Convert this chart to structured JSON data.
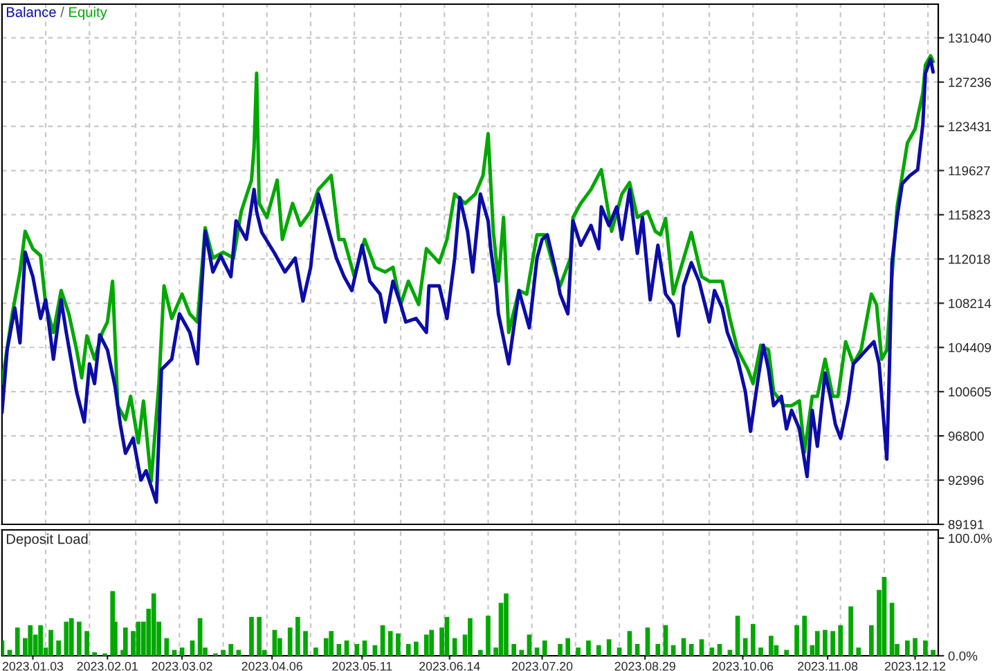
{
  "chart_data": [
    {
      "type": "line",
      "legend": "top left",
      "grid": true,
      "tick_labels": "y",
      "annotations": [
        "/"
      ],
      "xlim": [
        "2022-12-22",
        "2023-12-21"
      ],
      "ylim": [
        89191,
        133940
      ],
      "yticks": [
        89191,
        92996,
        96800,
        100605,
        104409,
        108214,
        112018,
        115823,
        119627,
        123431,
        127236,
        131040
      ],
      "xticks": [
        {
          "value": "2023-01-08",
          "label": null
        },
        {
          "value": "2023-01-25",
          "label": null
        },
        {
          "value": "2023-02-12",
          "label": null
        },
        {
          "value": "2023-03-01",
          "label": null
        },
        {
          "value": "2023-03-18",
          "label": null
        },
        {
          "value": "2023-04-04",
          "label": null
        },
        {
          "value": "2023-04-21",
          "label": null
        },
        {
          "value": "2023-05-08",
          "label": null
        },
        {
          "value": "2023-05-26",
          "label": null
        },
        {
          "value": "2023-06-12",
          "label": null
        },
        {
          "value": "2023-06-29",
          "label": null
        },
        {
          "value": "2023-07-16",
          "label": null
        },
        {
          "value": "2023-08-02",
          "label": null
        },
        {
          "value": "2023-08-19",
          "label": null
        },
        {
          "value": "2023-09-05",
          "label": null
        },
        {
          "value": "2023-09-23",
          "label": null
        },
        {
          "value": "2023-10-10",
          "label": null
        },
        {
          "value": "2023-10-27",
          "label": null
        },
        {
          "value": "2023-11-13",
          "label": null
        },
        {
          "value": "2023-11-30",
          "label": null
        },
        {
          "value": "2023-12-17",
          "label": null
        }
      ],
      "series": [
        {
          "name": "Balance",
          "color": "#0c0ca8",
          "x": [
            "2022-12-22",
            "2022-12-24",
            "2022-12-27",
            "2022-12-29",
            "2022-12-31",
            "2023-01-03",
            "2023-01-06",
            "2023-01-08",
            "2023-01-11",
            "2023-01-14",
            "2023-01-16",
            "2023-01-20",
            "2023-01-23",
            "2023-01-25",
            "2023-01-27",
            "2023-01-29",
            "2023-02-01",
            "2023-02-04",
            "2023-02-06",
            "2023-02-08",
            "2023-02-11",
            "2023-02-14",
            "2023-02-16",
            "2023-02-20",
            "2023-02-22",
            "2023-02-26",
            "2023-03-01",
            "2023-03-05",
            "2023-03-08",
            "2023-03-09",
            "2023-03-11",
            "2023-03-14",
            "2023-03-17",
            "2023-03-21",
            "2023-03-23",
            "2023-03-27",
            "2023-03-30",
            "2023-03-31",
            "2023-04-02",
            "2023-04-07",
            "2023-04-11",
            "2023-04-15",
            "2023-04-18",
            "2023-04-21",
            "2023-04-24",
            "2023-04-27",
            "2023-05-01",
            "2023-05-04",
            "2023-05-07",
            "2023-05-11",
            "2023-05-14",
            "2023-05-18",
            "2023-05-20",
            "2023-05-23",
            "2023-05-26",
            "2023-05-28",
            "2023-06-01",
            "2023-06-05",
            "2023-06-06",
            "2023-06-10",
            "2023-06-13",
            "2023-06-16",
            "2023-06-18",
            "2023-06-21",
            "2023-06-23",
            "2023-06-26",
            "2023-06-29",
            "2023-06-30",
            "2023-07-02",
            "2023-07-03",
            "2023-07-07",
            "2023-07-08",
            "2023-07-11",
            "2023-07-15",
            "2023-07-18",
            "2023-07-20",
            "2023-07-22",
            "2023-07-25",
            "2023-07-27",
            "2023-07-30",
            "2023-08-01",
            "2023-08-04",
            "2023-08-08",
            "2023-08-11",
            "2023-08-12",
            "2023-08-15",
            "2023-08-18",
            "2023-08-20",
            "2023-08-23",
            "2023-08-26",
            "2023-08-28",
            "2023-08-31",
            "2023-09-03",
            "2023-09-06",
            "2023-09-09",
            "2023-09-11",
            "2023-09-13",
            "2023-09-16",
            "2023-09-19",
            "2023-09-23",
            "2023-09-25",
            "2023-09-28",
            "2023-09-30",
            "2023-10-04",
            "2023-10-07",
            "2023-10-09",
            "2023-10-12",
            "2023-10-14",
            "2023-10-16",
            "2023-10-18",
            "2023-10-21",
            "2023-10-23",
            "2023-10-25",
            "2023-10-28",
            "2023-10-31",
            "2023-11-02",
            "2023-11-04",
            "2023-11-07",
            "2023-11-09",
            "2023-11-11",
            "2023-11-13",
            "2023-11-16",
            "2023-11-18",
            "2023-11-21",
            "2023-11-23",
            "2023-11-26",
            "2023-11-28",
            "2023-12-01",
            "2023-12-02",
            "2023-12-03",
            "2023-12-05",
            "2023-12-07",
            "2023-12-10",
            "2023-12-13",
            "2023-12-15",
            "2023-12-16",
            "2023-12-18",
            "2023-12-19"
          ],
          "values": [
            98800,
            104200,
            107800,
            104800,
            112600,
            110500,
            106900,
            108500,
            103400,
            108500,
            105700,
            100600,
            98000,
            103000,
            101300,
            105500,
            104200,
            101000,
            97800,
            95300,
            96600,
            93000,
            93800,
            91100,
            102500,
            103400,
            107300,
            105700,
            103000,
            107300,
            114400,
            110900,
            112300,
            110500,
            115300,
            113700,
            118000,
            116100,
            114300,
            112500,
            110900,
            112100,
            108400,
            111300,
            117600,
            115300,
            112100,
            110500,
            109300,
            113200,
            110100,
            109000,
            106600,
            110100,
            108100,
            106600,
            106900,
            105700,
            109700,
            109700,
            106900,
            112100,
            117300,
            114400,
            110900,
            117600,
            115300,
            112900,
            109700,
            107300,
            103000,
            104600,
            109300,
            106100,
            112100,
            113700,
            114100,
            111300,
            109000,
            107300,
            115300,
            113200,
            114900,
            112900,
            116500,
            114900,
            116500,
            113700,
            118000,
            112500,
            115600,
            108500,
            113200,
            109000,
            108100,
            105400,
            109700,
            111700,
            110100,
            106600,
            109300,
            107800,
            105700,
            103400,
            100600,
            97200,
            101800,
            104600,
            102500,
            99400,
            100200,
            97400,
            99000,
            97400,
            93300,
            99000,
            95900,
            102200,
            100200,
            97800,
            96600,
            99800,
            103000,
            103700,
            104200,
            104900,
            103000,
            94800,
            102500,
            111700,
            115600,
            118500,
            119200,
            119700,
            123600,
            128000,
            129200,
            128100
          ]
        },
        {
          "name": "Equity",
          "color": "#00a800",
          "x": [
            "2022-12-22",
            "2022-12-26",
            "2022-12-29",
            "2022-12-31",
            "2023-01-03",
            "2023-01-06",
            "2023-01-08",
            "2023-01-11",
            "2023-01-14",
            "2023-01-17",
            "2023-01-20",
            "2023-01-22",
            "2023-01-24",
            "2023-01-27",
            "2023-01-30",
            "2023-02-01",
            "2023-02-03",
            "2023-02-05",
            "2023-02-08",
            "2023-02-10",
            "2023-02-13",
            "2023-02-15",
            "2023-02-18",
            "2023-02-21",
            "2023-02-23",
            "2023-02-26",
            "2023-03-02",
            "2023-03-05",
            "2023-03-08",
            "2023-03-11",
            "2023-03-14",
            "2023-03-18",
            "2023-03-22",
            "2023-03-25",
            "2023-03-29",
            "2023-03-30",
            "2023-03-31",
            "2023-04-01",
            "2023-04-04",
            "2023-04-08",
            "2023-04-10",
            "2023-04-14",
            "2023-04-17",
            "2023-04-21",
            "2023-04-24",
            "2023-04-29",
            "2023-05-02",
            "2023-05-04",
            "2023-05-08",
            "2023-05-12",
            "2023-05-16",
            "2023-05-20",
            "2023-05-23",
            "2023-05-26",
            "2023-05-29",
            "2023-06-02",
            "2023-06-05",
            "2023-06-10",
            "2023-06-13",
            "2023-06-16",
            "2023-06-20",
            "2023-06-24",
            "2023-06-27",
            "2023-06-29",
            "2023-07-01",
            "2023-07-03",
            "2023-07-05",
            "2023-07-07",
            "2023-07-11",
            "2023-07-14",
            "2023-07-18",
            "2023-07-21",
            "2023-07-25",
            "2023-07-27",
            "2023-07-31",
            "2023-08-01",
            "2023-08-04",
            "2023-08-08",
            "2023-08-12",
            "2023-08-16",
            "2023-08-20",
            "2023-08-23",
            "2023-08-26",
            "2023-08-30",
            "2023-09-02",
            "2023-09-04",
            "2023-09-06",
            "2023-09-09",
            "2023-09-12",
            "2023-09-16",
            "2023-09-20",
            "2023-09-23",
            "2023-09-28",
            "2023-10-01",
            "2023-10-04",
            "2023-10-08",
            "2023-10-10",
            "2023-10-13",
            "2023-10-16",
            "2023-10-18",
            "2023-10-22",
            "2023-10-25",
            "2023-10-28",
            "2023-10-30",
            "2023-11-02",
            "2023-11-04",
            "2023-11-07",
            "2023-11-10",
            "2023-11-12",
            "2023-11-15",
            "2023-11-18",
            "2023-11-21",
            "2023-11-23",
            "2023-11-25",
            "2023-11-27",
            "2023-11-29",
            "2023-12-01",
            "2023-12-03",
            "2023-12-05",
            "2023-12-07",
            "2023-12-09",
            "2023-12-12",
            "2023-12-15",
            "2023-12-16",
            "2023-12-18",
            "2023-12-19"
          ],
          "values": [
            101300,
            107300,
            110900,
            114400,
            112900,
            112300,
            108100,
            105700,
            109300,
            107300,
            104200,
            101800,
            105400,
            103400,
            105700,
            106600,
            110100,
            99400,
            98200,
            100200,
            96200,
            99800,
            92900,
            101300,
            109700,
            106900,
            109000,
            107300,
            106600,
            114700,
            112100,
            112600,
            112100,
            116100,
            118800,
            121600,
            128000,
            116800,
            115600,
            118800,
            113700,
            116800,
            114900,
            116100,
            118000,
            119200,
            113700,
            113700,
            110500,
            113700,
            111300,
            110900,
            111300,
            108100,
            110100,
            108100,
            112900,
            111700,
            113700,
            117600,
            116800,
            117600,
            119200,
            122800,
            114400,
            110100,
            115600,
            105700,
            109300,
            109000,
            114100,
            114100,
            110900,
            109700,
            112100,
            115600,
            116800,
            118000,
            119700,
            114400,
            117600,
            118600,
            115600,
            116100,
            114400,
            114100,
            115500,
            109000,
            111300,
            114300,
            110500,
            110100,
            110100,
            106900,
            104200,
            102500,
            101300,
            104600,
            104200,
            100600,
            99400,
            99400,
            99800,
            95400,
            100200,
            100200,
            103400,
            100200,
            100200,
            104900,
            103000,
            104200,
            106600,
            109000,
            108100,
            103400,
            104200,
            110500,
            116500,
            119200,
            122000,
            123200,
            126300,
            128700,
            129500,
            129000
          ]
        }
      ]
    },
    {
      "type": "bar",
      "title": "Deposit Load",
      "grid": "x",
      "xlim": [
        "2022-12-22",
        "2023-12-21"
      ],
      "ylim": [
        0,
        107
      ],
      "yticks": [
        {
          "value": 0,
          "label": "0.0%"
        },
        {
          "value": 100,
          "label": "100.0%"
        }
      ],
      "xticks": [
        {
          "value": "2023-01-03",
          "label": "2023.01.03"
        },
        {
          "value": "2023-01-08",
          "label": null
        },
        {
          "value": "2023-01-25",
          "label": null
        },
        {
          "value": "2023-02-01",
          "label": "2023.02.01"
        },
        {
          "value": "2023-02-12",
          "label": null
        },
        {
          "value": "2023-03-01",
          "label": null
        },
        {
          "value": "2023-03-02",
          "label": "2023.03.02"
        },
        {
          "value": "2023-03-18",
          "label": null
        },
        {
          "value": "2023-04-04",
          "label": null
        },
        {
          "value": "2023-04-06",
          "label": "2023.04.06"
        },
        {
          "value": "2023-04-21",
          "label": null
        },
        {
          "value": "2023-05-08",
          "label": null
        },
        {
          "value": "2023-05-11",
          "label": "2023.05.11"
        },
        {
          "value": "2023-05-26",
          "label": null
        },
        {
          "value": "2023-06-12",
          "label": null
        },
        {
          "value": "2023-06-14",
          "label": "2023.06.14"
        },
        {
          "value": "2023-06-29",
          "label": null
        },
        {
          "value": "2023-07-16",
          "label": null
        },
        {
          "value": "2023-07-20",
          "label": "2023.07.20"
        },
        {
          "value": "2023-08-02",
          "label": null
        },
        {
          "value": "2023-08-19",
          "label": null
        },
        {
          "value": "2023-08-29",
          "label": "2023.08.29"
        },
        {
          "value": "2023-09-05",
          "label": null
        },
        {
          "value": "2023-09-23",
          "label": null
        },
        {
          "value": "2023-10-06",
          "label": "2023.10.06"
        },
        {
          "value": "2023-10-10",
          "label": null
        },
        {
          "value": "2023-10-27",
          "label": null
        },
        {
          "value": "2023-11-08",
          "label": "2023.11.08"
        },
        {
          "value": "2023-11-13",
          "label": null
        },
        {
          "value": "2023-11-30",
          "label": null
        },
        {
          "value": "2023-12-12",
          "label": "2023.12.12"
        },
        {
          "value": "2023-12-17",
          "label": null
        }
      ],
      "series": [
        {
          "color": "#00a800",
          "x": [
            "2022-12-22",
            "2022-12-25",
            "2022-12-28",
            "2022-12-31",
            "2023-01-02",
            "2023-01-04",
            "2023-01-06",
            "2023-01-08",
            "2023-01-10",
            "2023-01-13",
            "2023-01-16",
            "2023-01-18",
            "2023-01-21",
            "2023-01-24",
            "2023-01-27",
            "2023-01-31",
            "2023-02-03",
            "2023-02-04",
            "2023-02-07",
            "2023-02-08",
            "2023-02-11",
            "2023-02-13",
            "2023-02-15",
            "2023-02-17",
            "2023-02-19",
            "2023-02-21",
            "2023-02-24",
            "2023-02-27",
            "2023-03-02",
            "2023-03-06",
            "2023-03-09",
            "2023-03-11",
            "2023-03-15",
            "2023-03-18",
            "2023-03-21",
            "2023-03-24",
            "2023-03-29",
            "2023-04-01",
            "2023-04-03",
            "2023-04-07",
            "2023-04-09",
            "2023-04-13",
            "2023-04-16",
            "2023-04-19",
            "2023-04-23",
            "2023-04-27",
            "2023-04-29",
            "2023-05-02",
            "2023-05-05",
            "2023-05-09",
            "2023-05-12",
            "2023-05-16",
            "2023-05-19",
            "2023-05-22",
            "2023-05-25",
            "2023-05-29",
            "2023-06-01",
            "2023-06-05",
            "2023-06-07",
            "2023-06-11",
            "2023-06-13",
            "2023-06-16",
            "2023-06-20",
            "2023-06-22",
            "2023-06-26",
            "2023-06-29",
            "2023-07-02",
            "2023-07-04",
            "2023-07-06",
            "2023-07-09",
            "2023-07-12",
            "2023-07-15",
            "2023-07-18",
            "2023-07-21",
            "2023-07-27",
            "2023-07-30",
            "2023-08-03",
            "2023-08-07",
            "2023-08-11",
            "2023-08-15",
            "2023-08-19",
            "2023-08-23",
            "2023-08-26",
            "2023-08-30",
            "2023-09-03",
            "2023-09-06",
            "2023-09-09",
            "2023-09-13",
            "2023-09-16",
            "2023-09-20",
            "2023-09-24",
            "2023-09-27",
            "2023-10-01",
            "2023-10-04",
            "2023-10-07",
            "2023-10-10",
            "2023-10-13",
            "2023-10-17",
            "2023-10-19",
            "2023-10-23",
            "2023-10-27",
            "2023-10-30",
            "2023-11-02",
            "2023-11-04",
            "2023-11-07",
            "2023-11-10",
            "2023-11-13",
            "2023-11-17",
            "2023-11-20",
            "2023-11-25",
            "2023-11-28",
            "2023-11-30",
            "2023-12-03",
            "2023-12-05",
            "2023-12-09",
            "2023-12-12",
            "2023-12-16",
            "2023-12-19"
          ],
          "values": [
            13,
            5,
            24,
            15,
            26,
            18,
            26,
            7,
            22,
            13,
            29,
            32,
            29,
            21,
            3,
            2,
            55,
            29,
            5,
            24,
            21,
            29,
            29,
            40,
            53,
            29,
            15,
            5,
            7,
            13,
            32,
            7,
            2,
            5,
            10,
            5,
            33,
            33,
            5,
            22,
            15,
            24,
            33,
            21,
            7,
            15,
            21,
            10,
            13,
            10,
            13,
            9,
            26,
            21,
            19,
            10,
            12,
            18,
            22,
            24,
            33,
            15,
            18,
            32,
            5,
            34,
            7,
            45,
            53,
            10,
            5,
            18,
            7,
            13,
            10,
            15,
            7,
            13,
            9,
            14,
            7,
            21,
            10,
            24,
            10,
            26,
            9,
            15,
            10,
            14,
            7,
            10,
            5,
            34,
            15,
            27,
            7,
            17,
            9,
            5,
            26,
            34,
            9,
            21,
            22,
            21,
            26,
            42,
            7,
            26,
            56,
            67,
            45,
            10,
            13,
            15,
            13,
            5
          ]
        }
      ]
    }
  ]
}
